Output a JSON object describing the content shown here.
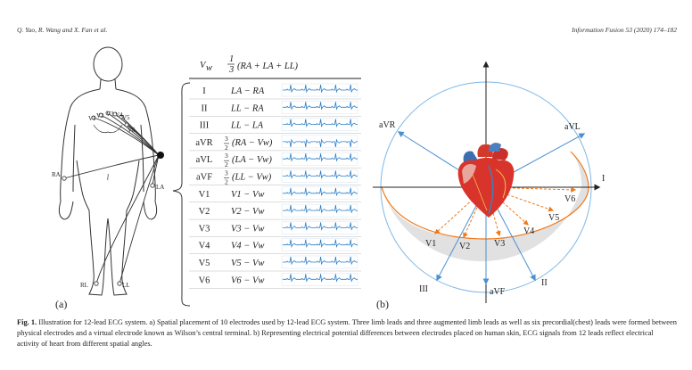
{
  "header": {
    "authors": "Q. Yao, R. Wang and X. Fan et al.",
    "journal": "Information Fusion 53 (2020) 174–182"
  },
  "figure": {
    "panel_a_label": "(a)",
    "panel_b_label": "(b)",
    "body_electrodes": {
      "chest": [
        "V1",
        "V2",
        "V3",
        "V4",
        "V5",
        "V6"
      ],
      "ra": "RA",
      "la": "LA",
      "rl": "RL",
      "ll": "LL"
    },
    "vw_symbol": "V",
    "vw_subscript": "w",
    "vw_formula": "(RA + LA + LL)",
    "vw_fraction": {
      "num": "1",
      "den": "3"
    },
    "leads": [
      {
        "name": "I",
        "formula": "LA − RA",
        "frac": ""
      },
      {
        "name": "II",
        "formula": "LL − RA",
        "frac": ""
      },
      {
        "name": "III",
        "formula": "LL − LA",
        "frac": ""
      },
      {
        "name": "aVR",
        "formula": "(RA − Vw)",
        "frac": "3/2"
      },
      {
        "name": "aVL",
        "formula": "(LA − Vw)",
        "frac": "3/2"
      },
      {
        "name": "aVF",
        "formula": "(LL − Vw)",
        "frac": "3/2"
      },
      {
        "name": "V1",
        "formula": "V1 − Vw",
        "frac": ""
      },
      {
        "name": "V2",
        "formula": "V2 − Vw",
        "frac": ""
      },
      {
        "name": "V3",
        "formula": "V3 − Vw",
        "frac": ""
      },
      {
        "name": "V4",
        "formula": "V4 − Vw",
        "frac": ""
      },
      {
        "name": "V5",
        "formula": "V5 − Vw",
        "frac": ""
      },
      {
        "name": "V6",
        "formula": "V6 − Vw",
        "frac": ""
      }
    ],
    "axis_labels": {
      "I": "I",
      "II": "II",
      "III": "III",
      "aVR": "aVR",
      "aVL": "aVL",
      "aVF": "aVF",
      "V1": "V1",
      "V2": "V2",
      "V3": "V3",
      "V4": "V4",
      "V5": "V5",
      "V6": "V6"
    },
    "colors": {
      "blue": "#4a90d0",
      "orange": "#f07818",
      "trace": "#2b7fc7",
      "circle": "#7fb7e6"
    }
  },
  "caption": {
    "label": "Fig. 1.",
    "text": "Illustration for 12-lead ECG system. a) Spatial placement of 10 electrodes used by 12-lead ECG system. Three limb leads and three augmented limb leads as well as six precordial(chest) leads were formed between physical electrodes and a virtual electrode known as Wilson’s central terminal. b) Representing electrical potential differences between electrodes placed on human skin, ECG signals from 12 leads reflect electrical activity of heart from different spatial angles."
  }
}
